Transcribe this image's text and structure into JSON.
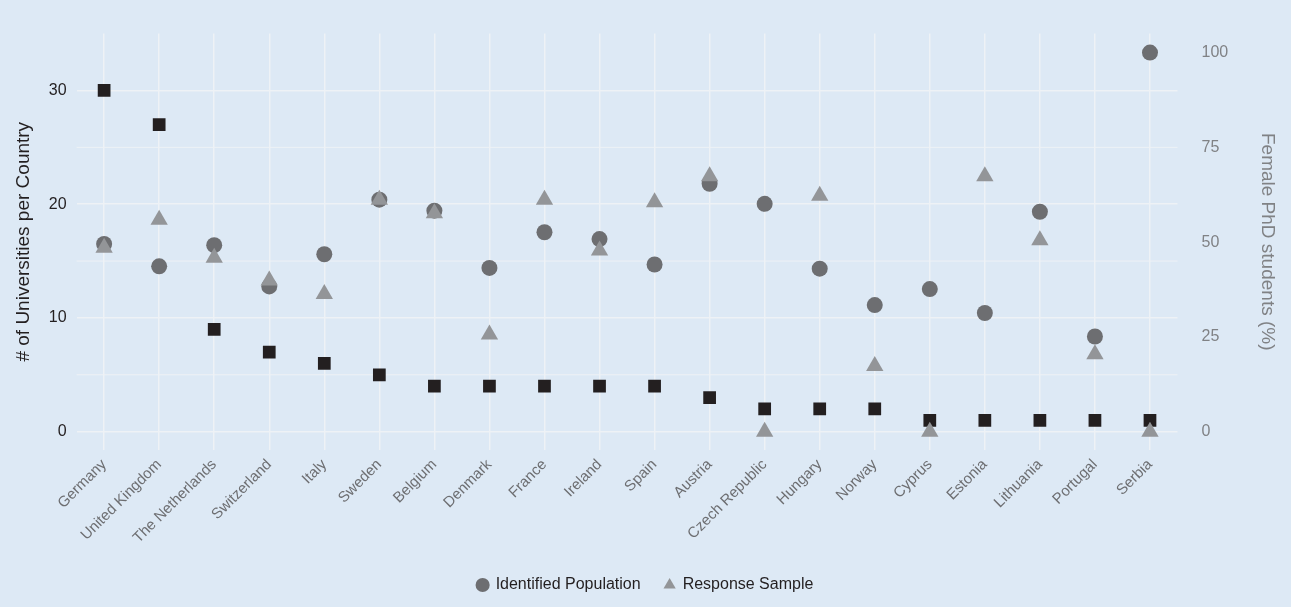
{
  "chart_data": {
    "type": "scatter",
    "ylabel": "# of Universities per Country",
    "y2label": "Female PhD students (%)",
    "categories": [
      "Germany",
      "United Kingdom",
      "The Netherlands",
      "Switzerland",
      "Italy",
      "Sweden",
      "Belgium",
      "Denmark",
      "France",
      "Ireland",
      "Spain",
      "Austria",
      "Czech Republic",
      "Hungary",
      "Norway",
      "Cyprus",
      "Estonia",
      "Lithuania",
      "Portugal",
      "Serbia"
    ],
    "series": [
      {
        "color": "#231f20",
        "marker": "square",
        "values": [
          30,
          27,
          9,
          7,
          6,
          5,
          4,
          4,
          4,
          4,
          4,
          3,
          2,
          2,
          2,
          1,
          1,
          1,
          1,
          1
        ]
      },
      {
        "name": "Identified Population",
        "color": "#6d6e71",
        "marker": "circle",
        "axis": "y2",
        "values": [
          49.5,
          43.6,
          49.2,
          38.3,
          46.8,
          61.2,
          58.3,
          43.2,
          52.6,
          50.8,
          44.1,
          65.4,
          60.1,
          43,
          33.4,
          37.6,
          31.3,
          58,
          25.1,
          100
        ]
      },
      {
        "name": "Response Sample",
        "color": "#939598",
        "marker": "triangle",
        "axis": "y2",
        "values": [
          48.5,
          55.9,
          45.9,
          39.9,
          36.3,
          61.2,
          57.6,
          25.6,
          61.2,
          47.8,
          60.5,
          67.4,
          0,
          62.2,
          17.3,
          0,
          67.4,
          50.5,
          20.4,
          0
        ]
      }
    ],
    "ylim": [
      -1.6,
      35
    ],
    "yticks": [
      0,
      10,
      20,
      30
    ],
    "y2lim": [
      -4.8,
      105
    ],
    "y2ticks": [
      0,
      25,
      50,
      75,
      100
    ],
    "grid": true,
    "legend": "bottom"
  }
}
